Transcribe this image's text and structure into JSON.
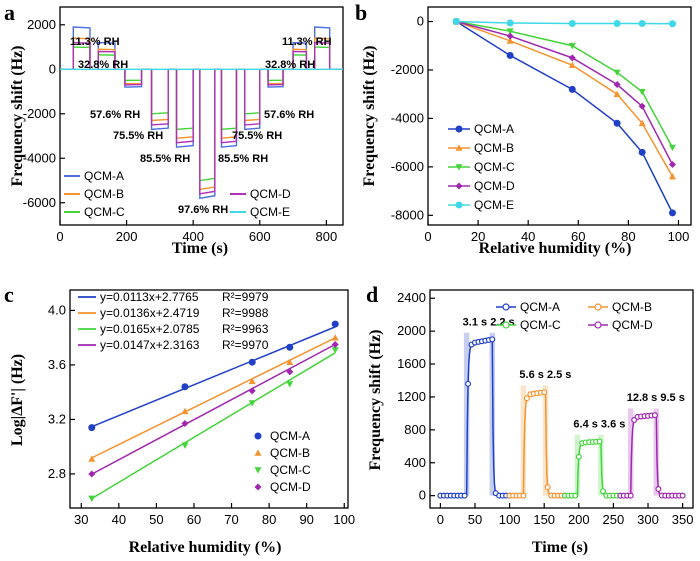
{
  "chart_data": [
    {
      "panel": "a",
      "type": "line",
      "xlabel": "Time (s)",
      "ylabel": "Frequency shift (Hz)",
      "xlim": [
        0,
        850
      ],
      "ylim": [
        -7000,
        2800
      ],
      "xticks": [
        0,
        200,
        400,
        600,
        800
      ],
      "yticks": [
        -6000,
        -4000,
        -2000,
        0,
        2000
      ],
      "steps": [
        {
          "label": "11.3% RH",
          "start": 40,
          "end": 90,
          "rh": 11.3
        },
        {
          "label": "32.8% RH",
          "start": 115,
          "end": 165,
          "rh": 32.8
        },
        {
          "label": "57.6% RH",
          "start": 195,
          "end": 245,
          "rh": 57.6
        },
        {
          "label": "75.5% RH",
          "start": 275,
          "end": 325,
          "rh": 75.5
        },
        {
          "label": "85.5% RH",
          "start": 350,
          "end": 400,
          "rh": 85.5
        },
        {
          "label": "97.6% RH",
          "start": 420,
          "end": 465,
          "rh": 97.6
        },
        {
          "label": "85.5% RH",
          "start": 485,
          "end": 530,
          "rh": 85.5
        },
        {
          "label": "75.5% RH",
          "start": 555,
          "end": 600,
          "rh": 75.5
        },
        {
          "label": "57.6% RH",
          "start": 625,
          "end": 670,
          "rh": 57.6
        },
        {
          "label": "32.8% RH",
          "start": 700,
          "end": 740,
          "rh": 32.8
        },
        {
          "label": "11.3% RH",
          "start": 765,
          "end": 810,
          "rh": 11.3
        }
      ],
      "series": [
        {
          "name": "QCM-A",
          "color": "#4a6fe0",
          "levels": {
            "11.3": 1900,
            "32.8": 1200,
            "57.6": -800,
            "75.5": -2700,
            "85.5": -3500,
            "97.6": -5800
          }
        },
        {
          "name": "QCM-B",
          "color": "#f5932e",
          "levels": {
            "11.3": 1400,
            "32.8": 900,
            "57.6": -650,
            "75.5": -2300,
            "85.5": -3100,
            "97.6": -5400
          }
        },
        {
          "name": "QCM-C",
          "color": "#43d43a",
          "levels": {
            "11.3": 1000,
            "32.8": 650,
            "57.6": -500,
            "75.5": -2000,
            "85.5": -2700,
            "97.6": -5000
          }
        },
        {
          "name": "QCM-D",
          "color": "#b030b8",
          "levels": {
            "11.3": 1200,
            "32.8": 800,
            "57.6": -700,
            "75.5": -2500,
            "85.5": -3300,
            "97.6": -5600
          }
        },
        {
          "name": "QCM-E",
          "color": "#3ed8e8",
          "levels": {
            "11.3": 0,
            "32.8": 0,
            "57.6": 0,
            "75.5": 0,
            "85.5": 0,
            "97.6": 0
          }
        }
      ]
    },
    {
      "panel": "b",
      "type": "line",
      "xlabel": "Relative humidity (%)",
      "ylabel": "Frequency shift (Hz)",
      "xlim": [
        0,
        105
      ],
      "ylim": [
        -8400,
        600
      ],
      "xticks": [
        0,
        20,
        40,
        60,
        80,
        100
      ],
      "yticks": [
        -8000,
        -6000,
        -4000,
        -2000,
        0
      ],
      "x": [
        11.3,
        32.8,
        57.6,
        75.5,
        85.5,
        97.6
      ],
      "series": [
        {
          "name": "QCM-A",
          "color": "#2040c8",
          "marker": "circle",
          "values": [
            0,
            -1400,
            -2800,
            -4200,
            -5400,
            -7900
          ]
        },
        {
          "name": "QCM-B",
          "color": "#f5932e",
          "marker": "triangle-up",
          "values": [
            0,
            -800,
            -1800,
            -3000,
            -4200,
            -6400
          ]
        },
        {
          "name": "QCM-C",
          "color": "#43d43a",
          "marker": "triangle-down",
          "values": [
            0,
            -400,
            -1000,
            -2100,
            -2900,
            -5200
          ]
        },
        {
          "name": "QCM-D",
          "color": "#a028b0",
          "marker": "diamond",
          "values": [
            0,
            -600,
            -1500,
            -2600,
            -3500,
            -5900
          ]
        },
        {
          "name": "QCM-E",
          "color": "#3ed8e8",
          "marker": "circle",
          "values": [
            0,
            -60,
            -80,
            -80,
            -80,
            -90
          ]
        }
      ]
    },
    {
      "panel": "c",
      "type": "scatter",
      "xlabel": "Relative humidity (%)",
      "ylabel": "Log|ΔF'| (Hz)",
      "xlim": [
        27,
        101
      ],
      "ylim": [
        2.55,
        4.15
      ],
      "xticks": [
        30,
        40,
        50,
        60,
        70,
        80,
        90,
        100
      ],
      "yticks": [
        2.8,
        3.2,
        3.6,
        4.0
      ],
      "x": [
        32.8,
        57.6,
        75.5,
        85.5,
        97.6
      ],
      "series": [
        {
          "name": "QCM-A",
          "color": "#2040c8",
          "marker": "circle",
          "values": [
            3.14,
            3.44,
            3.62,
            3.73,
            3.9
          ],
          "fit": "y=0.0113x+2.7765",
          "r2": "R²=9979",
          "slope": 0.0113,
          "intercept": 2.7765
        },
        {
          "name": "QCM-B",
          "color": "#f5932e",
          "marker": "triangle-up",
          "values": [
            2.91,
            3.26,
            3.48,
            3.62,
            3.8
          ],
          "fit": "y=0.0136x+2.4719",
          "r2": "R²=9988",
          "slope": 0.0136,
          "intercept": 2.4719
        },
        {
          "name": "QCM-C",
          "color": "#43d43a",
          "marker": "triangle-down",
          "values": [
            2.62,
            3.01,
            3.32,
            3.46,
            3.71
          ],
          "fit": "y=0.0165x+2.0785",
          "r2": "R²=9963",
          "slope": 0.0165,
          "intercept": 2.0785
        },
        {
          "name": "QCM-D",
          "color": "#a028b0",
          "marker": "diamond",
          "values": [
            2.8,
            3.17,
            3.41,
            3.55,
            3.75
          ],
          "fit": "y=0.0147x+2.3163",
          "r2": "R²=9970",
          "slope": 0.0147,
          "intercept": 2.3163
        }
      ]
    },
    {
      "panel": "d",
      "type": "line",
      "xlabel": "Time (s)",
      "ylabel": "Frequency shift (Hz)",
      "xlim": [
        -15,
        365
      ],
      "ylim": [
        -150,
        2500
      ],
      "xticks": [
        0,
        50,
        100,
        150,
        200,
        250,
        300,
        350
      ],
      "yticks": [
        0,
        400,
        800,
        1200,
        1600,
        2000,
        2400
      ],
      "series": [
        {
          "name": "QCM-A",
          "color": "#2040c8",
          "marker": "circle-open",
          "t_start": 0,
          "t_end": 100,
          "t_up": 38,
          "t_down": 75,
          "level": 1900,
          "tau_up": "3.1 s",
          "tau_down": "2.2 s"
        },
        {
          "name": "QCM-B",
          "color": "#f5932e",
          "marker": "circle-open",
          "t_start": 100,
          "t_end": 180,
          "t_up": 120,
          "t_down": 152,
          "level": 1260,
          "tau_up": "5.6 s",
          "tau_down": "2.5 s"
        },
        {
          "name": "QCM-C",
          "color": "#43d43a",
          "marker": "circle-open",
          "t_start": 180,
          "t_end": 260,
          "t_up": 198,
          "t_down": 232,
          "level": 660,
          "tau_up": "6.4 s",
          "tau_down": "3.6 s"
        },
        {
          "name": "QCM-D",
          "color": "#a028b0",
          "marker": "circle-open",
          "t_start": 260,
          "t_end": 350,
          "t_up": 275,
          "t_down": 312,
          "level": 980,
          "tau_up": "12.8 s",
          "tau_down": "9.5 s"
        }
      ]
    }
  ],
  "panel_labels": [
    "a",
    "b",
    "c",
    "d"
  ]
}
